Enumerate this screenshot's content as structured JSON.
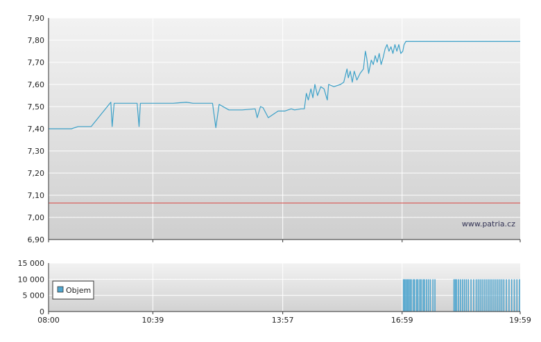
{
  "chart_data": [
    {
      "type": "line",
      "title": "",
      "xlabel": "",
      "ylabel": "",
      "ylim": [
        6.9,
        7.9
      ],
      "y_ticks": [
        "6,90",
        "7,00",
        "7,10",
        "7,20",
        "7,30",
        "7,40",
        "7,50",
        "7,60",
        "7,70",
        "7,80",
        "7,90"
      ],
      "x_range": [
        "08:00",
        "19:59"
      ],
      "x_ticks": [
        "08:00",
        "10:39",
        "13:57",
        "16:59",
        "19:59"
      ],
      "grid": true,
      "watermark": "www.patria.cz",
      "reference_line": {
        "value": 7.065,
        "color": "#d9534f"
      },
      "line_color": "#3aa0c8",
      "series": [
        {
          "points": [
            [
              "08:00",
              7.4
            ],
            [
              "08:35",
              7.4
            ],
            [
              "08:45",
              7.41
            ],
            [
              "09:05",
              7.41
            ],
            [
              "09:35",
              7.52
            ],
            [
              "09:37",
              7.41
            ],
            [
              "09:40",
              7.515
            ],
            [
              "10:15",
              7.515
            ],
            [
              "10:18",
              7.41
            ],
            [
              "10:20",
              7.515
            ],
            [
              "11:10",
              7.515
            ],
            [
              "11:30",
              7.52
            ],
            [
              "11:40",
              7.515
            ],
            [
              "12:10",
              7.515
            ],
            [
              "12:15",
              7.405
            ],
            [
              "12:20",
              7.51
            ],
            [
              "12:35",
              7.485
            ],
            [
              "12:55",
              7.485
            ],
            [
              "13:15",
              7.49
            ],
            [
              "13:18",
              7.45
            ],
            [
              "13:23",
              7.5
            ],
            [
              "13:27",
              7.495
            ],
            [
              "13:35",
              7.45
            ],
            [
              "13:40",
              7.46
            ],
            [
              "13:50",
              7.48
            ],
            [
              "14:00",
              7.48
            ],
            [
              "14:10",
              7.49
            ],
            [
              "14:15",
              7.485
            ],
            [
              "14:25",
              7.49
            ],
            [
              "14:30",
              7.49
            ],
            [
              "14:33",
              7.56
            ],
            [
              "14:36",
              7.53
            ],
            [
              "14:40",
              7.58
            ],
            [
              "14:43",
              7.54
            ],
            [
              "14:46",
              7.6
            ],
            [
              "14:50",
              7.55
            ],
            [
              "14:55",
              7.59
            ],
            [
              "15:00",
              7.58
            ],
            [
              "15:05",
              7.53
            ],
            [
              "15:07",
              7.6
            ],
            [
              "15:15",
              7.59
            ],
            [
              "15:25",
              7.6
            ],
            [
              "15:30",
              7.61
            ],
            [
              "15:35",
              7.67
            ],
            [
              "15:37",
              7.63
            ],
            [
              "15:40",
              7.66
            ],
            [
              "15:43",
              7.61
            ],
            [
              "15:46",
              7.66
            ],
            [
              "15:50",
              7.62
            ],
            [
              "15:55",
              7.65
            ],
            [
              "16:00",
              7.67
            ],
            [
              "16:03",
              7.75
            ],
            [
              "16:05",
              7.72
            ],
            [
              "16:08",
              7.65
            ],
            [
              "16:12",
              7.71
            ],
            [
              "16:15",
              7.69
            ],
            [
              "16:18",
              7.73
            ],
            [
              "16:21",
              7.7
            ],
            [
              "16:24",
              7.74
            ],
            [
              "16:27",
              7.69
            ],
            [
              "16:30",
              7.72
            ],
            [
              "16:33",
              7.76
            ],
            [
              "16:36",
              7.78
            ],
            [
              "16:39",
              7.75
            ],
            [
              "16:42",
              7.77
            ],
            [
              "16:45",
              7.74
            ],
            [
              "16:48",
              7.78
            ],
            [
              "16:51",
              7.75
            ],
            [
              "16:54",
              7.78
            ],
            [
              "16:57",
              7.74
            ],
            [
              "17:00",
              7.75
            ],
            [
              "17:02",
              7.78
            ],
            [
              "17:05",
              7.795
            ],
            [
              "19:59",
              7.795
            ]
          ]
        }
      ]
    },
    {
      "type": "bar",
      "title": "",
      "ylim": [
        0,
        15000
      ],
      "y_ticks": [
        "0",
        "5 000",
        "10 000",
        "15 000"
      ],
      "x_range": [
        "08:00",
        "19:59"
      ],
      "x_ticks": [
        "08:00",
        "10:39",
        "13:57",
        "16:59",
        "19:59"
      ],
      "grid": true,
      "bar_color": "#4fa6cf",
      "legend": {
        "position": "left",
        "entries": [
          {
            "name": "Objem",
            "color": "#4fa6cf"
          }
        ]
      },
      "series": [
        {
          "name": "Objem",
          "points": [
            [
              "17:01",
              10000
            ],
            [
              "17:03",
              10000
            ],
            [
              "17:05",
              10000
            ],
            [
              "17:07",
              10000
            ],
            [
              "17:09",
              10000
            ],
            [
              "17:11",
              10000
            ],
            [
              "17:13",
              10000
            ],
            [
              "17:16",
              10000
            ],
            [
              "17:18",
              10000
            ],
            [
              "17:21",
              10000
            ],
            [
              "17:23",
              10000
            ],
            [
              "17:26",
              10000
            ],
            [
              "17:28",
              10000
            ],
            [
              "17:31",
              10000
            ],
            [
              "17:33",
              10000
            ],
            [
              "17:36",
              10000
            ],
            [
              "17:39",
              10000
            ],
            [
              "17:42",
              10000
            ],
            [
              "17:46",
              10000
            ],
            [
              "17:49",
              10000
            ],
            [
              "18:18",
              10000
            ],
            [
              "18:20",
              10000
            ],
            [
              "18:22",
              10000
            ],
            [
              "18:25",
              10000
            ],
            [
              "18:28",
              10000
            ],
            [
              "18:31",
              10000
            ],
            [
              "18:34",
              10000
            ],
            [
              "18:37",
              10000
            ],
            [
              "18:40",
              10000
            ],
            [
              "18:44",
              10000
            ],
            [
              "18:48",
              10000
            ],
            [
              "18:52",
              10000
            ],
            [
              "18:55",
              10000
            ],
            [
              "18:58",
              10000
            ],
            [
              "19:01",
              10000
            ],
            [
              "19:04",
              10000
            ],
            [
              "19:07",
              10000
            ],
            [
              "19:10",
              10000
            ],
            [
              "19:13",
              10000
            ],
            [
              "19:16",
              10000
            ],
            [
              "19:19",
              10000
            ],
            [
              "19:22",
              10000
            ],
            [
              "19:25",
              10000
            ],
            [
              "19:28",
              10000
            ],
            [
              "19:31",
              10000
            ],
            [
              "19:34",
              10000
            ],
            [
              "19:38",
              10000
            ],
            [
              "19:42",
              10000
            ],
            [
              "19:46",
              10000
            ],
            [
              "19:50",
              10000
            ],
            [
              "19:54",
              10000
            ],
            [
              "19:58",
              10000
            ]
          ]
        }
      ]
    }
  ]
}
